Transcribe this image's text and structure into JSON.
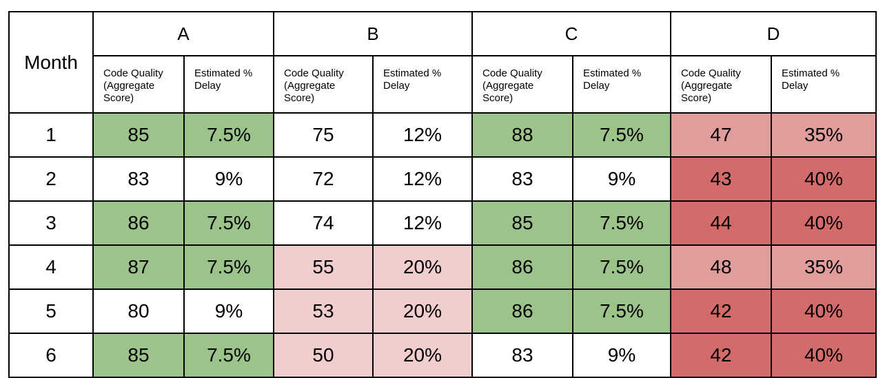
{
  "table": {
    "month_header": "Month",
    "groups": [
      "A",
      "B",
      "C",
      "D"
    ],
    "subheaders": [
      "Code Quality (Aggregate Score)",
      "Estimated % Delay"
    ],
    "rows": [
      {
        "month": "1",
        "cells": [
          "85",
          "7.5%",
          "75",
          "12%",
          "88",
          "7.5%",
          "47",
          "35%"
        ],
        "fills": [
          "#9cc48a",
          "#ffffff",
          "#9cc48a",
          "#e09d9c"
        ]
      },
      {
        "month": "2",
        "cells": [
          "83",
          "9%",
          "72",
          "12%",
          "83",
          "9%",
          "43",
          "40%"
        ],
        "fills": [
          "#ffffff",
          "#ffffff",
          "#ffffff",
          "#d26b6a"
        ]
      },
      {
        "month": "3",
        "cells": [
          "86",
          "7.5%",
          "74",
          "12%",
          "85",
          "7.5%",
          "44",
          "40%"
        ],
        "fills": [
          "#9cc48a",
          "#ffffff",
          "#9cc48a",
          "#d26b6a"
        ]
      },
      {
        "month": "4",
        "cells": [
          "87",
          "7.5%",
          "55",
          "20%",
          "86",
          "7.5%",
          "48",
          "35%"
        ],
        "fills": [
          "#9cc48a",
          "#f1cdcd",
          "#9cc48a",
          "#e09d9c"
        ]
      },
      {
        "month": "5",
        "cells": [
          "80",
          "9%",
          "53",
          "20%",
          "86",
          "7.5%",
          "42",
          "40%"
        ],
        "fills": [
          "#ffffff",
          "#f1cdcd",
          "#9cc48a",
          "#d26b6a"
        ]
      },
      {
        "month": "6",
        "cells": [
          "85",
          "7.5%",
          "50",
          "20%",
          "83",
          "9%",
          "42",
          "40%"
        ],
        "fills": [
          "#9cc48a",
          "#f1cdcd",
          "#ffffff",
          "#d26b6a"
        ]
      }
    ]
  }
}
